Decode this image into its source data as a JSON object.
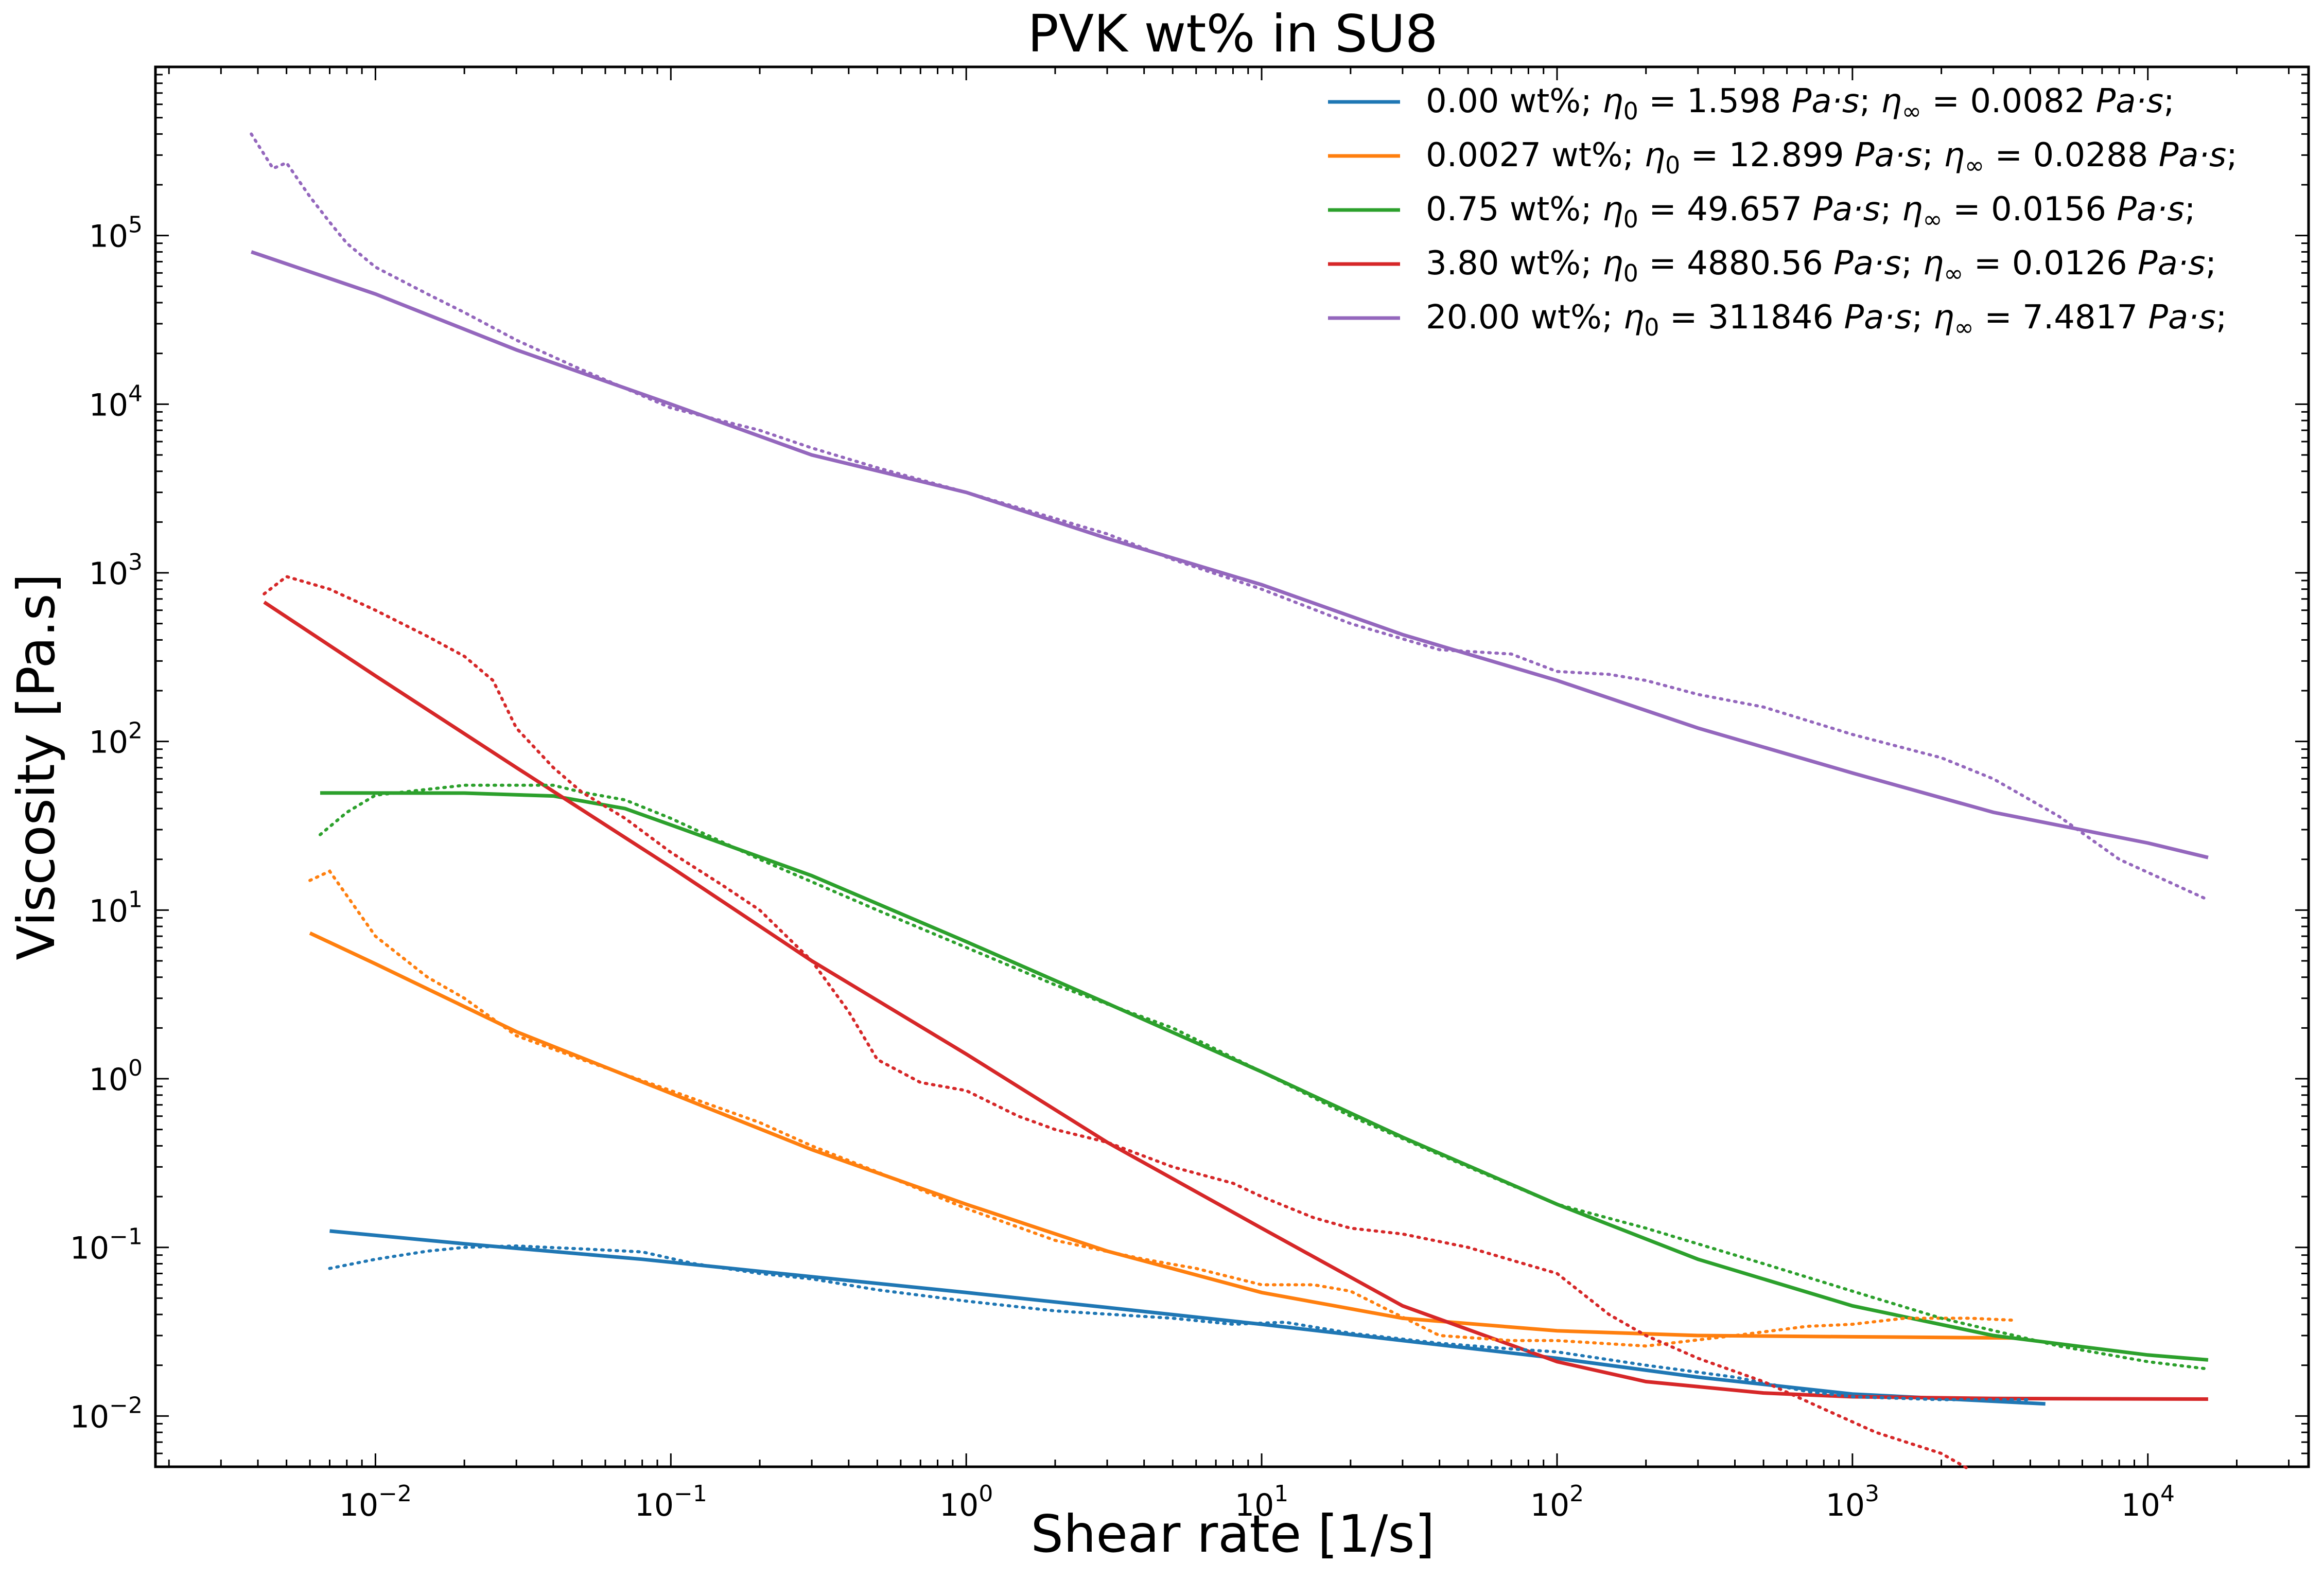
{
  "chart_data": {
    "type": "line",
    "title": "PVK wt% in SU8",
    "xlabel": "Shear rate [1/s]",
    "ylabel": "Viscosity [Pa.s]",
    "xscale": "log",
    "yscale": "log",
    "xlim": [
      0.0018,
      35000
    ],
    "ylim": [
      0.005,
      1000000
    ],
    "x_ticks": [
      {
        "value": 0.01,
        "base": "10",
        "exp": "−2"
      },
      {
        "value": 0.1,
        "base": "10",
        "exp": "−1"
      },
      {
        "value": 1,
        "base": "10",
        "exp": "0"
      },
      {
        "value": 10,
        "base": "10",
        "exp": "1"
      },
      {
        "value": 100,
        "base": "10",
        "exp": "2"
      },
      {
        "value": 1000,
        "base": "10",
        "exp": "3"
      },
      {
        "value": 10000,
        "base": "10",
        "exp": "4"
      }
    ],
    "y_ticks": [
      {
        "value": 0.01,
        "base": "10",
        "exp": "−2"
      },
      {
        "value": 0.1,
        "base": "10",
        "exp": "−1"
      },
      {
        "value": 1,
        "base": "10",
        "exp": "0"
      },
      {
        "value": 10,
        "base": "10",
        "exp": "1"
      },
      {
        "value": 100,
        "base": "10",
        "exp": "2"
      },
      {
        "value": 1000,
        "base": "10",
        "exp": "3"
      },
      {
        "value": 10000,
        "base": "10",
        "exp": "4"
      },
      {
        "value": 100000,
        "base": "10",
        "exp": "5"
      }
    ],
    "grid": false,
    "legend_position": "top-right",
    "series": [
      {
        "name": "0.00 wt%; η0 = 1.598 Pa·s; η∞ = 0.0082 Pa·s;",
        "legend": {
          "lead": "0.00 wt%; ",
          "eta0": "1.598",
          "etainf": "0.0082"
        },
        "color": "#1f77b4",
        "fit": [
          [
            0.007,
            0.125
          ],
          [
            0.02,
            0.105
          ],
          [
            0.08,
            0.085
          ],
          [
            0.3,
            0.067
          ],
          [
            1,
            0.054
          ],
          [
            3,
            0.044
          ],
          [
            10,
            0.035
          ],
          [
            30,
            0.028
          ],
          [
            100,
            0.022
          ],
          [
            300,
            0.017
          ],
          [
            1000,
            0.0135
          ],
          [
            4500,
            0.0118
          ]
        ],
        "measured": [
          [
            0.007,
            0.075
          ],
          [
            0.01,
            0.085
          ],
          [
            0.015,
            0.095
          ],
          [
            0.02,
            0.1
          ],
          [
            0.03,
            0.102
          ],
          [
            0.05,
            0.098
          ],
          [
            0.08,
            0.094
          ],
          [
            0.12,
            0.08
          ],
          [
            0.2,
            0.07
          ],
          [
            0.3,
            0.065
          ],
          [
            0.5,
            0.056
          ],
          [
            1,
            0.048
          ],
          [
            2,
            0.042
          ],
          [
            5,
            0.038
          ],
          [
            8,
            0.035
          ],
          [
            12,
            0.036
          ],
          [
            20,
            0.031
          ],
          [
            40,
            0.027
          ],
          [
            70,
            0.025
          ],
          [
            100,
            0.024
          ],
          [
            200,
            0.02
          ],
          [
            400,
            0.017
          ],
          [
            700,
            0.014
          ],
          [
            1000,
            0.013
          ],
          [
            2000,
            0.0125
          ],
          [
            4000,
            0.0125
          ]
        ]
      },
      {
        "name": "0.0027 wt%; η0 = 12.899 Pa·s; η∞ = 0.0288 Pa·s;",
        "legend": {
          "lead": "0.0027 wt%; ",
          "eta0": "12.899",
          "etainf": "0.0288"
        },
        "color": "#ff7f0e",
        "fit": [
          [
            0.006,
            7.3
          ],
          [
            0.01,
            4.8
          ],
          [
            0.03,
            1.9
          ],
          [
            0.1,
            0.82
          ],
          [
            0.3,
            0.38
          ],
          [
            1,
            0.18
          ],
          [
            3,
            0.095
          ],
          [
            10,
            0.054
          ],
          [
            30,
            0.038
          ],
          [
            100,
            0.032
          ],
          [
            300,
            0.03
          ],
          [
            1000,
            0.0295
          ],
          [
            3500,
            0.029
          ]
        ],
        "measured": [
          [
            0.006,
            15
          ],
          [
            0.007,
            17
          ],
          [
            0.01,
            7
          ],
          [
            0.015,
            4
          ],
          [
            0.02,
            3
          ],
          [
            0.03,
            1.8
          ],
          [
            0.05,
            1.3
          ],
          [
            0.1,
            0.85
          ],
          [
            0.2,
            0.55
          ],
          [
            0.3,
            0.4
          ],
          [
            0.5,
            0.28
          ],
          [
            1,
            0.17
          ],
          [
            2,
            0.11
          ],
          [
            4,
            0.085
          ],
          [
            6,
            0.075
          ],
          [
            10,
            0.06
          ],
          [
            15,
            0.06
          ],
          [
            20,
            0.055
          ],
          [
            40,
            0.03
          ],
          [
            70,
            0.028
          ],
          [
            100,
            0.028
          ],
          [
            200,
            0.026
          ],
          [
            400,
            0.03
          ],
          [
            700,
            0.034
          ],
          [
            1000,
            0.035
          ],
          [
            1500,
            0.038
          ],
          [
            2500,
            0.038
          ],
          [
            3500,
            0.037
          ]
        ]
      },
      {
        "name": "0.75 wt%; η0 = 49.657 Pa·s; η∞ = 0.0156 Pa·s;",
        "legend": {
          "lead": "0.75 wt%; ",
          "eta0": "49.657",
          "etainf": "0.0156"
        },
        "color": "#2ca02c",
        "fit": [
          [
            0.0065,
            49.5
          ],
          [
            0.02,
            49.4
          ],
          [
            0.04,
            47.5
          ],
          [
            0.07,
            40
          ],
          [
            0.1,
            32
          ],
          [
            0.3,
            16
          ],
          [
            1,
            6.5
          ],
          [
            3,
            2.8
          ],
          [
            10,
            1.1
          ],
          [
            30,
            0.45
          ],
          [
            100,
            0.18
          ],
          [
            300,
            0.085
          ],
          [
            1000,
            0.045
          ],
          [
            3000,
            0.03
          ],
          [
            10000,
            0.023
          ],
          [
            16000,
            0.0215
          ]
        ],
        "measured": [
          [
            0.0065,
            28
          ],
          [
            0.008,
            38
          ],
          [
            0.01,
            48
          ],
          [
            0.015,
            52
          ],
          [
            0.02,
            55
          ],
          [
            0.03,
            55
          ],
          [
            0.04,
            55
          ],
          [
            0.05,
            50
          ],
          [
            0.07,
            45
          ],
          [
            0.1,
            35
          ],
          [
            0.2,
            20
          ],
          [
            0.5,
            10
          ],
          [
            1,
            6
          ],
          [
            2,
            3.6
          ],
          [
            5,
            2
          ],
          [
            10,
            1.1
          ],
          [
            20,
            0.6
          ],
          [
            50,
            0.3
          ],
          [
            100,
            0.18
          ],
          [
            200,
            0.13
          ],
          [
            500,
            0.08
          ],
          [
            1000,
            0.055
          ],
          [
            2000,
            0.038
          ],
          [
            5000,
            0.026
          ],
          [
            10000,
            0.021
          ],
          [
            16000,
            0.019
          ]
        ]
      },
      {
        "name": "3.80 wt%; η0 = 4880.56 Pa·s; η∞ = 0.0126 Pa·s;",
        "legend": {
          "lead": "3.80 wt%; ",
          "eta0": "4880.56",
          "etainf": "0.0126"
        },
        "color": "#d62728",
        "fit": [
          [
            0.0042,
            670
          ],
          [
            0.01,
            245
          ],
          [
            0.03,
            70
          ],
          [
            0.1,
            18
          ],
          [
            0.3,
            5
          ],
          [
            1,
            1.4
          ],
          [
            3,
            0.42
          ],
          [
            10,
            0.13
          ],
          [
            30,
            0.045
          ],
          [
            100,
            0.021
          ],
          [
            200,
            0.016
          ],
          [
            500,
            0.0137
          ],
          [
            1000,
            0.013
          ],
          [
            3000,
            0.0127
          ],
          [
            16000,
            0.0126
          ]
        ],
        "measured": [
          [
            0.0042,
            750
          ],
          [
            0.005,
            950
          ],
          [
            0.007,
            800
          ],
          [
            0.01,
            600
          ],
          [
            0.015,
            420
          ],
          [
            0.02,
            320
          ],
          [
            0.025,
            230
          ],
          [
            0.03,
            120
          ],
          [
            0.04,
            70
          ],
          [
            0.05,
            50
          ],
          [
            0.07,
            35
          ],
          [
            0.1,
            22
          ],
          [
            0.15,
            14
          ],
          [
            0.2,
            10
          ],
          [
            0.3,
            5
          ],
          [
            0.4,
            2.5
          ],
          [
            0.5,
            1.3
          ],
          [
            0.7,
            0.95
          ],
          [
            1,
            0.85
          ],
          [
            1.5,
            0.6
          ],
          [
            2,
            0.5
          ],
          [
            3,
            0.42
          ],
          [
            5,
            0.3
          ],
          [
            8,
            0.24
          ],
          [
            10,
            0.2
          ],
          [
            15,
            0.15
          ],
          [
            20,
            0.13
          ],
          [
            30,
            0.12
          ],
          [
            50,
            0.1
          ],
          [
            100,
            0.07
          ],
          [
            150,
            0.04
          ],
          [
            200,
            0.03
          ],
          [
            300,
            0.022
          ],
          [
            500,
            0.016
          ],
          [
            800,
            0.011
          ],
          [
            1200,
            0.008
          ],
          [
            2000,
            0.006
          ],
          [
            2500,
            0.0048
          ]
        ]
      },
      {
        "name": "20.00 wt%; η0 = 311846 Pa·s; η∞ = 7.4817 Pa·s;",
        "legend": {
          "lead": "20.00 wt%; ",
          "eta0": "311846",
          "etainf": "7.4817"
        },
        "color": "#9467bd",
        "fit": [
          [
            0.0038,
            80000
          ],
          [
            0.01,
            45000
          ],
          [
            0.03,
            21000
          ],
          [
            0.1,
            10000
          ],
          [
            0.3,
            5000
          ],
          [
            1,
            3000
          ],
          [
            3,
            1600
          ],
          [
            10,
            850
          ],
          [
            30,
            430
          ],
          [
            100,
            230
          ],
          [
            300,
            120
          ],
          [
            1000,
            65
          ],
          [
            3000,
            38
          ],
          [
            10000,
            25
          ],
          [
            16000,
            20.5
          ]
        ],
        "measured": [
          [
            0.0038,
            400000
          ],
          [
            0.0045,
            250000
          ],
          [
            0.005,
            270000
          ],
          [
            0.006,
            170000
          ],
          [
            0.007,
            120000
          ],
          [
            0.008,
            90000
          ],
          [
            0.01,
            65000
          ],
          [
            0.015,
            45000
          ],
          [
            0.02,
            35000
          ],
          [
            0.03,
            24000
          ],
          [
            0.05,
            16000
          ],
          [
            0.1,
            9500
          ],
          [
            0.2,
            7000
          ],
          [
            0.3,
            5500
          ],
          [
            0.5,
            4200
          ],
          [
            1,
            3000
          ],
          [
            2,
            2100
          ],
          [
            3,
            1700
          ],
          [
            5,
            1200
          ],
          [
            10,
            800
          ],
          [
            20,
            500
          ],
          [
            40,
            350
          ],
          [
            70,
            330
          ],
          [
            100,
            260
          ],
          [
            150,
            250
          ],
          [
            200,
            230
          ],
          [
            300,
            190
          ],
          [
            500,
            160
          ],
          [
            1000,
            110
          ],
          [
            2000,
            80
          ],
          [
            3000,
            60
          ],
          [
            5000,
            36
          ],
          [
            8000,
            20
          ],
          [
            16000,
            11.5
          ]
        ]
      }
    ]
  }
}
